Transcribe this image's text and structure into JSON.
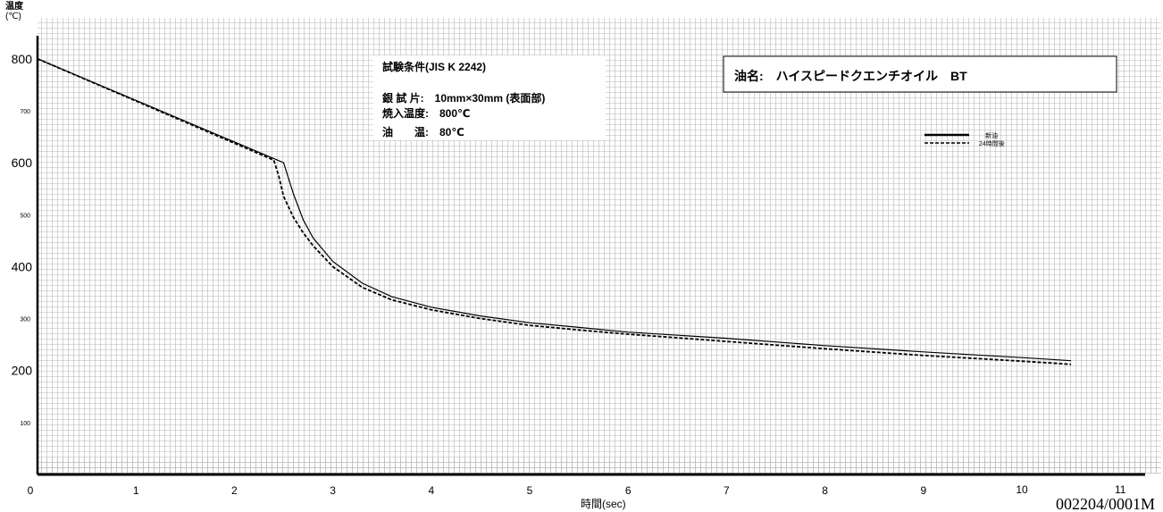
{
  "chart_data": {
    "type": "line",
    "ylabel_line1": "温度",
    "ylabel_line2": "(℃)",
    "xlabel": "時間(sec)",
    "xlim": [
      0,
      11.2
    ],
    "ylim": [
      0,
      830
    ],
    "y_ticks": [
      {
        "value": 800,
        "label": "800",
        "size": "major"
      },
      {
        "value": 700,
        "label": "700",
        "size": "minor"
      },
      {
        "value": 600,
        "label": "600",
        "size": "major"
      },
      {
        "value": 500,
        "label": "500",
        "size": "minor"
      },
      {
        "value": 400,
        "label": "400",
        "size": "major"
      },
      {
        "value": 300,
        "label": "300",
        "size": "minor"
      },
      {
        "value": 200,
        "label": "200",
        "size": "major"
      },
      {
        "value": 100,
        "label": "100",
        "size": "minor"
      }
    ],
    "x_ticks": [
      "0",
      "1",
      "2",
      "3",
      "4",
      "5",
      "6",
      "7",
      "8",
      "9",
      "10",
      "11"
    ],
    "grid": true,
    "series": [
      {
        "name": "新油",
        "style": "solid",
        "color": "#000000",
        "points": [
          [
            0,
            800
          ],
          [
            2.5,
            600
          ],
          [
            2.6,
            540
          ],
          [
            2.7,
            490
          ],
          [
            2.8,
            455
          ],
          [
            3.0,
            410
          ],
          [
            3.3,
            368
          ],
          [
            3.6,
            342
          ],
          [
            4.0,
            322
          ],
          [
            4.5,
            305
          ],
          [
            5.0,
            292
          ],
          [
            5.5,
            283
          ],
          [
            6.0,
            274
          ],
          [
            7.0,
            262
          ],
          [
            8.0,
            248
          ],
          [
            9.0,
            236
          ],
          [
            10.0,
            225
          ],
          [
            10.5,
            219
          ]
        ]
      },
      {
        "name": "24時間後",
        "style": "dashed",
        "color": "#000000",
        "points": [
          [
            0,
            800
          ],
          [
            2.4,
            605
          ],
          [
            2.45,
            575
          ],
          [
            2.5,
            535
          ],
          [
            2.6,
            495
          ],
          [
            2.7,
            465
          ],
          [
            2.8,
            440
          ],
          [
            3.0,
            400
          ],
          [
            3.3,
            360
          ],
          [
            3.6,
            336
          ],
          [
            4.0,
            317
          ],
          [
            4.5,
            300
          ],
          [
            5.0,
            287
          ],
          [
            5.5,
            278
          ],
          [
            6.0,
            270
          ],
          [
            7.0,
            256
          ],
          [
            8.0,
            242
          ],
          [
            9.0,
            229
          ],
          [
            10.0,
            218
          ],
          [
            10.5,
            212
          ]
        ]
      }
    ],
    "annotations": {
      "conditions_title": "試験条件(JIS K 2242)",
      "conditions": [
        "銀 試 片:　10mm×30mm (表面部)",
        "焼入温度:　800℃",
        "油　　温:　80℃"
      ],
      "oil_name": "油名:　ハイスピードクエンチオイル　BT"
    },
    "legend_position": "right"
  },
  "footer_id": "002204/0001M"
}
